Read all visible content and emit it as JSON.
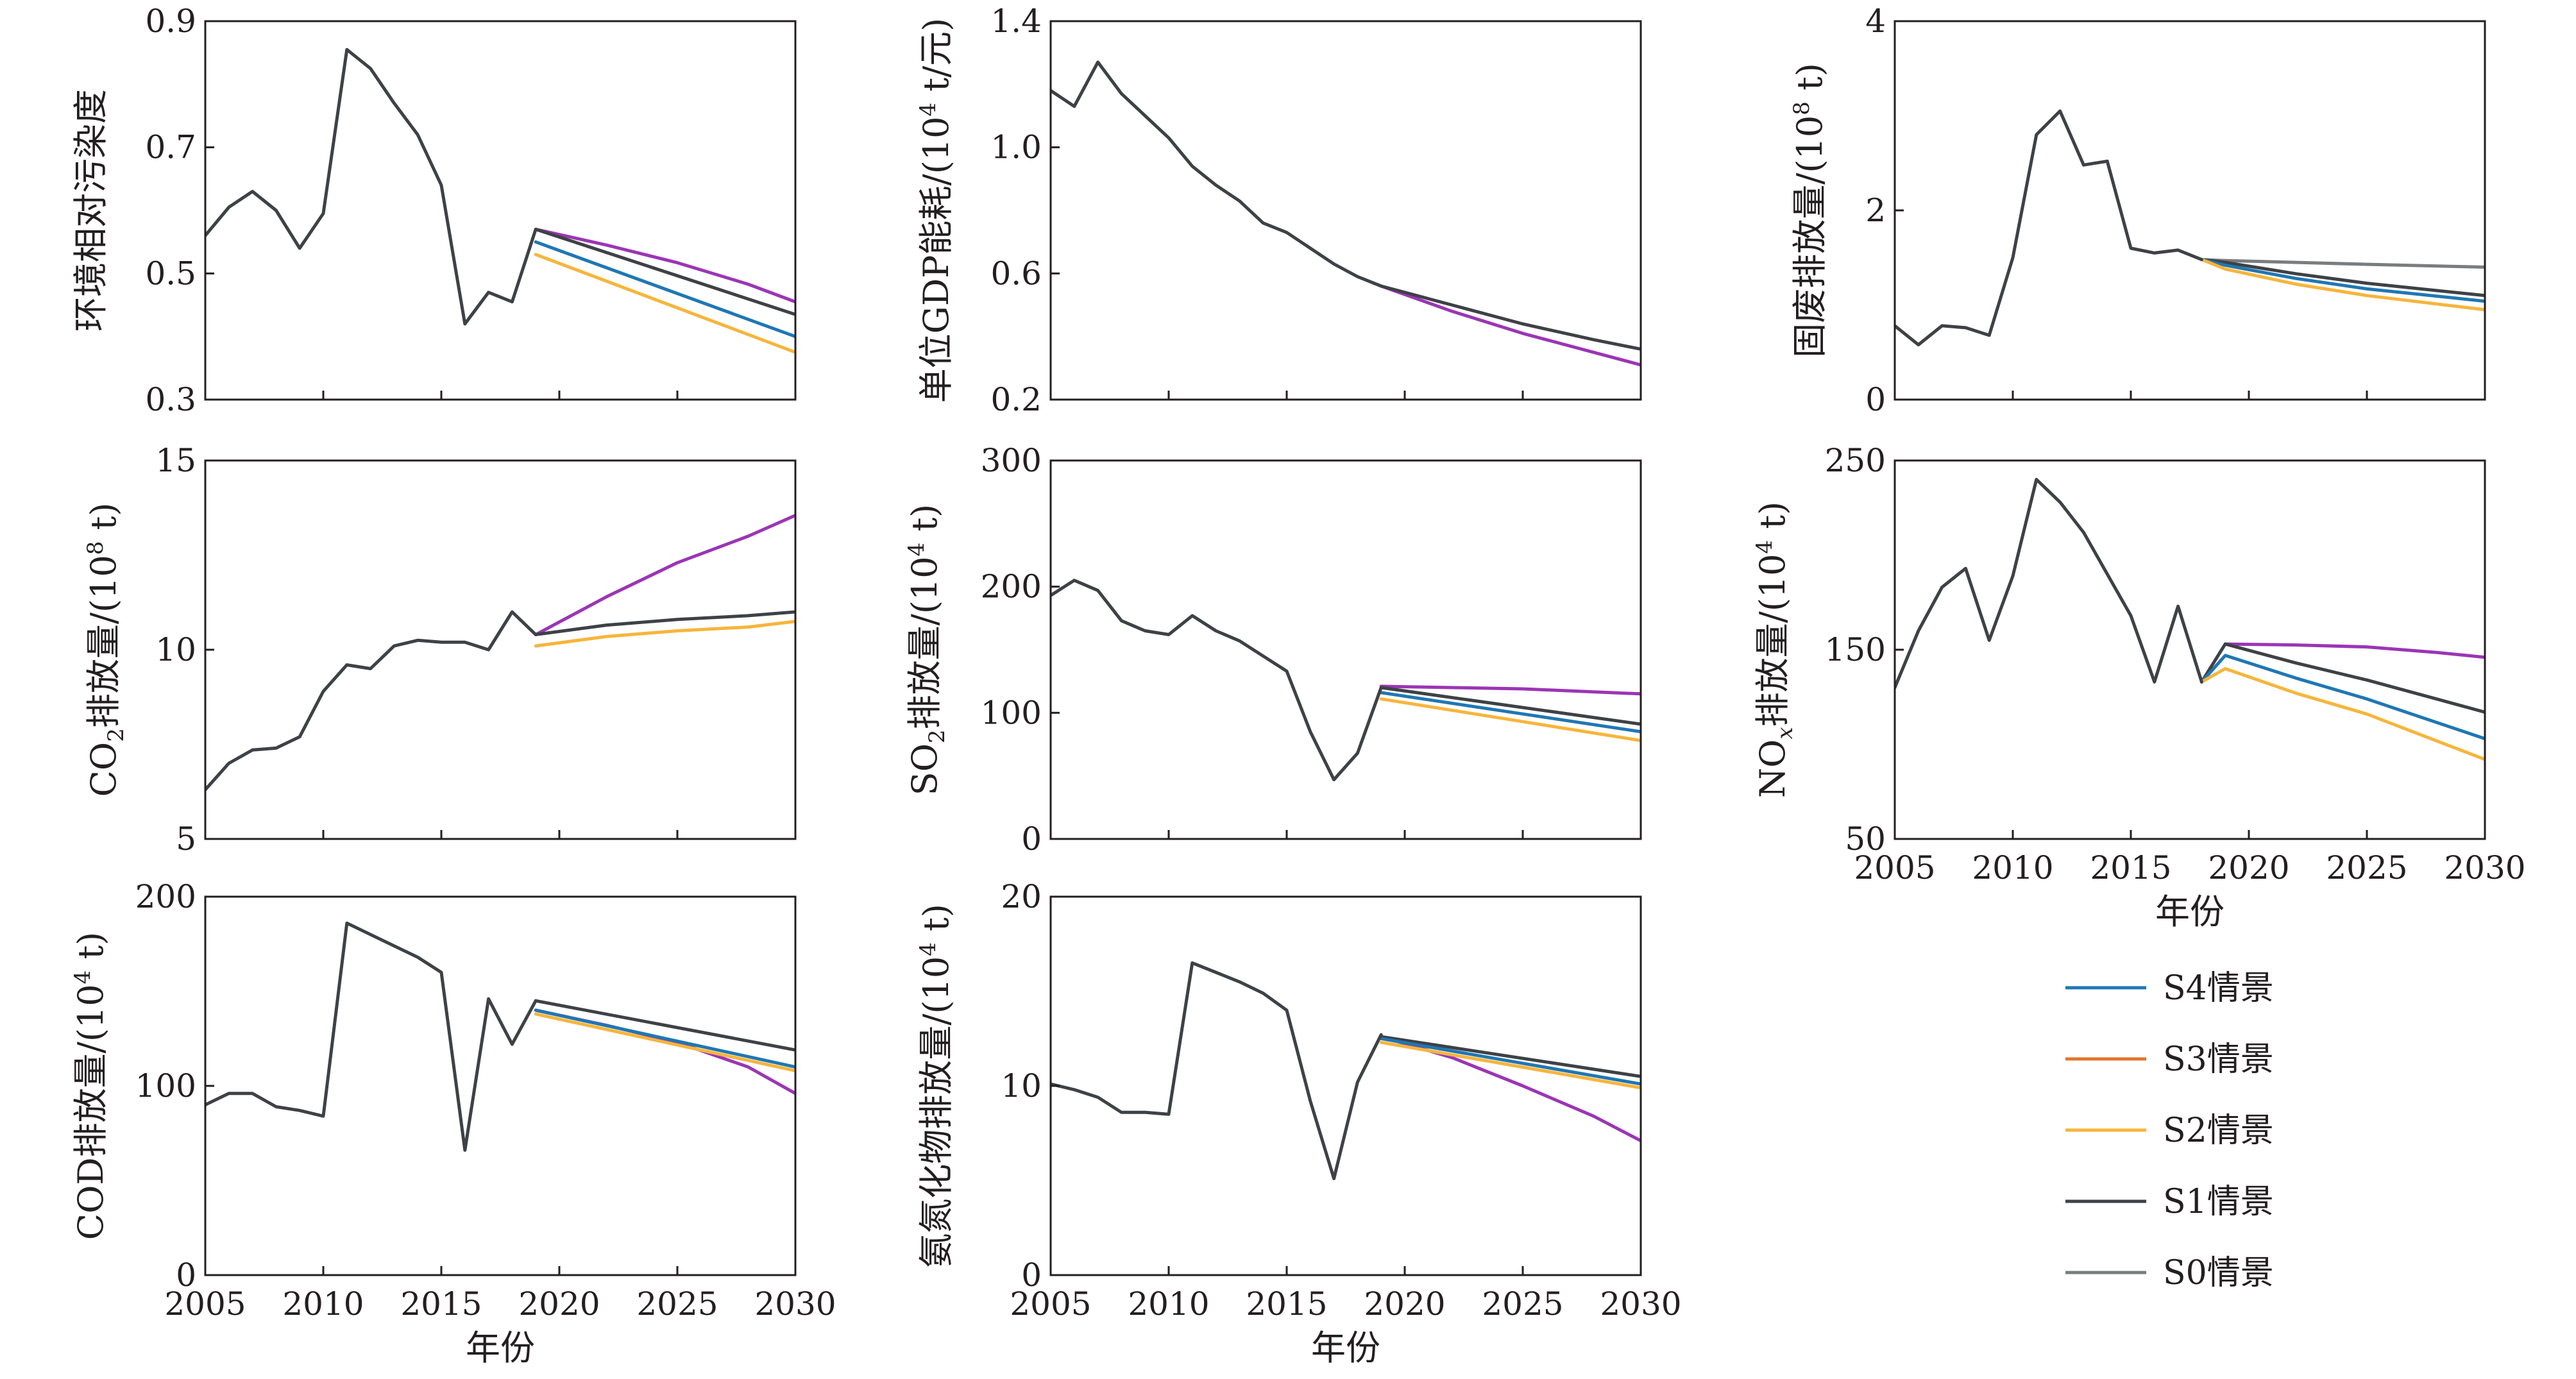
{
  "colors": {
    "S4": "#1f77b4",
    "S3": "#e3752b",
    "S2": "#f7b53b",
    "S1": "#3e4145",
    "S0": "#7a7d7f",
    "extra": "#9b35b5",
    "axis": "#231f20"
  },
  "legend": {
    "items": [
      {
        "key": "S4",
        "label": "S4情景"
      },
      {
        "key": "S3",
        "label": "S3情景"
      },
      {
        "key": "S2",
        "label": "S2情景"
      },
      {
        "key": "S1",
        "label": "S1情景"
      },
      {
        "key": "S0",
        "label": "S0情景"
      }
    ]
  },
  "chart_data": [
    {
      "type": "line",
      "id": "relative-pollution",
      "ylabel": {
        "before": "环境相对污染度",
        "sup": "",
        "after": ""
      },
      "xlabel": "",
      "xlim": [
        2005,
        2030
      ],
      "ylim": [
        0.3,
        0.9
      ],
      "yticks": [
        "0.3",
        "0.5",
        "0.7",
        "0.9"
      ],
      "xticks": [
        "2005",
        "2010",
        "2015",
        "2020",
        "2025",
        "2030"
      ],
      "show_xticklabels": false,
      "history": {
        "x": [
          2005,
          2006,
          2007,
          2008,
          2009,
          2010,
          2011,
          2012,
          2013,
          2014,
          2015,
          2016,
          2017,
          2018,
          2019
        ],
        "y": [
          0.56,
          0.605,
          0.63,
          0.6,
          0.54,
          0.595,
          0.855,
          0.825,
          0.77,
          0.72,
          0.64,
          0.42,
          0.47,
          0.455,
          0.57
        ]
      },
      "series": [
        {
          "key": "extra",
          "x": [
            2019,
            2022,
            2025,
            2028,
            2030
          ],
          "y": [
            0.57,
            0.545,
            0.517,
            0.483,
            0.455
          ]
        },
        {
          "key": "S1",
          "x": [
            2019,
            2030
          ],
          "y": [
            0.57,
            0.435
          ]
        },
        {
          "key": "S4",
          "x": [
            2019,
            2030
          ],
          "y": [
            0.55,
            0.4
          ]
        },
        {
          "key": "S2",
          "x": [
            2019,
            2030
          ],
          "y": [
            0.53,
            0.375
          ]
        }
      ]
    },
    {
      "type": "line",
      "id": "energy-per-gdp",
      "ylabel": {
        "before": "单位GDP能耗/(10",
        "sup": "4",
        "after": " t/元)"
      },
      "xlabel": "",
      "xlim": [
        2005,
        2030
      ],
      "ylim": [
        0.2,
        1.4
      ],
      "yticks": [
        "0.2",
        "0.6",
        "1.0",
        "1.4"
      ],
      "xticks": [
        "2005",
        "2010",
        "2015",
        "2020",
        "2025",
        "2030"
      ],
      "show_xticklabels": false,
      "history": {
        "x": [
          2005,
          2006,
          2007,
          2008,
          2009,
          2010,
          2011,
          2012,
          2013,
          2014,
          2015,
          2016,
          2017,
          2018,
          2019
        ],
        "y": [
          1.18,
          1.13,
          1.27,
          1.17,
          1.1,
          1.03,
          0.94,
          0.88,
          0.83,
          0.76,
          0.73,
          0.68,
          0.63,
          0.59,
          0.56
        ]
      },
      "series": [
        {
          "key": "extra",
          "x": [
            2019,
            2022,
            2025,
            2028,
            2030
          ],
          "y": [
            0.56,
            0.48,
            0.41,
            0.35,
            0.31
          ]
        },
        {
          "key": "S1",
          "x": [
            2019,
            2020,
            2022,
            2025,
            2028,
            2030
          ],
          "y": [
            0.56,
            0.54,
            0.5,
            0.44,
            0.39,
            0.36
          ]
        }
      ]
    },
    {
      "type": "line",
      "id": "solid-waste",
      "ylabel": {
        "before": "固废排放量/(10",
        "sup": "8",
        "after": " t)"
      },
      "xlabel": "",
      "xlim": [
        2005,
        2030
      ],
      "ylim": [
        0,
        4
      ],
      "yticks": [
        "0",
        "2",
        "4"
      ],
      "xticks": [
        "2005",
        "2010",
        "2015",
        "2020",
        "2025",
        "2030"
      ],
      "show_xticklabels": false,
      "history": {
        "x": [
          2005,
          2006,
          2007,
          2008,
          2009,
          2010,
          2011,
          2012,
          2013,
          2014,
          2015,
          2016,
          2017,
          2018
        ],
        "y": [
          0.78,
          0.58,
          0.78,
          0.76,
          0.68,
          1.5,
          2.8,
          3.05,
          2.48,
          2.52,
          1.6,
          1.55,
          1.58,
          1.48
        ]
      },
      "series": [
        {
          "key": "S0",
          "x": [
            2018,
            2019,
            2022,
            2025,
            2030
          ],
          "y": [
            1.48,
            1.47,
            1.45,
            1.43,
            1.4
          ]
        },
        {
          "key": "S1",
          "x": [
            2018,
            2019,
            2022,
            2025,
            2030
          ],
          "y": [
            1.48,
            1.45,
            1.33,
            1.23,
            1.1
          ]
        },
        {
          "key": "S4",
          "x": [
            2018,
            2019,
            2022,
            2025,
            2030
          ],
          "y": [
            1.48,
            1.42,
            1.28,
            1.17,
            1.04
          ]
        },
        {
          "key": "S2",
          "x": [
            2018,
            2019,
            2022,
            2025,
            2030
          ],
          "y": [
            1.48,
            1.38,
            1.22,
            1.1,
            0.95
          ]
        }
      ]
    },
    {
      "type": "line",
      "id": "co2",
      "ylabel": {
        "before": "CO",
        "sub": "2",
        "after": "排放量/(10",
        "sup": "8",
        "after2": " t)"
      },
      "xlabel": "",
      "xlim": [
        2005,
        2030
      ],
      "ylim": [
        5,
        15
      ],
      "yticks": [
        "5",
        "10",
        "15"
      ],
      "xticks": [
        "2005",
        "2010",
        "2015",
        "2020",
        "2025",
        "2030"
      ],
      "show_xticklabels": false,
      "history": {
        "x": [
          2005,
          2006,
          2007,
          2008,
          2009,
          2010,
          2011,
          2012,
          2013,
          2014,
          2015,
          2016,
          2017,
          2018,
          2019
        ],
        "y": [
          6.3,
          7.0,
          7.35,
          7.4,
          7.7,
          8.9,
          9.6,
          9.5,
          10.1,
          10.25,
          10.2,
          10.2,
          10.0,
          11.0,
          10.4
        ]
      },
      "series": [
        {
          "key": "extra",
          "x": [
            2019,
            2022,
            2025,
            2028,
            2030
          ],
          "y": [
            10.4,
            11.4,
            12.3,
            13.0,
            13.55
          ]
        },
        {
          "key": "S1",
          "x": [
            2019,
            2022,
            2025,
            2028,
            2030
          ],
          "y": [
            10.4,
            10.65,
            10.8,
            10.9,
            11.0
          ]
        },
        {
          "key": "S2",
          "x": [
            2019,
            2022,
            2025,
            2028,
            2030
          ],
          "y": [
            10.1,
            10.35,
            10.5,
            10.6,
            10.75
          ]
        }
      ]
    },
    {
      "type": "line",
      "id": "so2",
      "ylabel": {
        "before": "SO",
        "sub": "2",
        "after": "排放量/(10",
        "sup": "4",
        "after2": " t)"
      },
      "xlabel": "",
      "xlim": [
        2005,
        2030
      ],
      "ylim": [
        0,
        300
      ],
      "yticks": [
        "0",
        "100",
        "200",
        "300"
      ],
      "xticks": [
        "2005",
        "2010",
        "2015",
        "2020",
        "2025",
        "2030"
      ],
      "show_xticklabels": false,
      "history": {
        "x": [
          2005,
          2006,
          2007,
          2008,
          2009,
          2010,
          2011,
          2012,
          2013,
          2014,
          2015,
          2016,
          2017,
          2018,
          2019
        ],
        "y": [
          193,
          205,
          197,
          173,
          165,
          162,
          177,
          165,
          157,
          145,
          133,
          85,
          47,
          68,
          120
        ]
      },
      "series": [
        {
          "key": "extra",
          "x": [
            2019,
            2022,
            2025,
            2030
          ],
          "y": [
            121,
            120,
            119,
            115
          ]
        },
        {
          "key": "S1",
          "x": [
            2019,
            2030
          ],
          "y": [
            120,
            91
          ]
        },
        {
          "key": "S4",
          "x": [
            2019,
            2030
          ],
          "y": [
            116,
            85
          ]
        },
        {
          "key": "S2",
          "x": [
            2019,
            2030
          ],
          "y": [
            111,
            78
          ]
        }
      ]
    },
    {
      "type": "line",
      "id": "nox",
      "ylabel": {
        "before": "NO",
        "subitalic": "x",
        "after": "排放量/(10",
        "sup": "4",
        "after2": " t)"
      },
      "xlabel": "年份",
      "xlim": [
        2005,
        2030
      ],
      "ylim": [
        50,
        250
      ],
      "yticks": [
        "50",
        "150",
        "250"
      ],
      "xticks": [
        "2005",
        "2010",
        "2015",
        "2020",
        "2025",
        "2030"
      ],
      "show_xticklabels": true,
      "history": {
        "x": [
          2005,
          2006,
          2007,
          2008,
          2009,
          2010,
          2011,
          2012,
          2013,
          2014,
          2015,
          2016,
          2017,
          2018
        ],
        "y": [
          130,
          160,
          183,
          193,
          155,
          189,
          240,
          228,
          212,
          190,
          168,
          133,
          173,
          133
        ]
      },
      "series": [
        {
          "key": "extra",
          "x": [
            2019,
            2022,
            2025,
            2028,
            2030
          ],
          "y": [
            153,
            152.5,
            151.5,
            148.5,
            146
          ]
        },
        {
          "key": "S1",
          "x": [
            2018,
            2019,
            2022,
            2025,
            2030
          ],
          "y": [
            133,
            153,
            143,
            134,
            117
          ]
        },
        {
          "key": "S4",
          "x": [
            2018,
            2019,
            2022,
            2025,
            2030
          ],
          "y": [
            133,
            147,
            135,
            124,
            103
          ]
        },
        {
          "key": "S2",
          "x": [
            2018,
            2019,
            2022,
            2025,
            2030
          ],
          "y": [
            133,
            140,
            127,
            116,
            92
          ]
        }
      ]
    },
    {
      "type": "line",
      "id": "cod",
      "ylabel": {
        "before": "COD排放量/(10",
        "sup": "4",
        "after": " t)"
      },
      "xlabel": "年份",
      "xlim": [
        2005,
        2030
      ],
      "ylim": [
        0,
        200
      ],
      "yticks": [
        "0",
        "100",
        "200"
      ],
      "xticks": [
        "2005",
        "2010",
        "2015",
        "2020",
        "2025",
        "2030"
      ],
      "show_xticklabels": true,
      "history": {
        "x": [
          2005,
          2006,
          2007,
          2008,
          2009,
          2010,
          2011,
          2012,
          2013,
          2014,
          2015,
          2016,
          2017,
          2018,
          2019
        ],
        "y": [
          90,
          96,
          96,
          89,
          87,
          84,
          186,
          180,
          174,
          168,
          160,
          66,
          146,
          122,
          145
        ]
      },
      "series": [
        {
          "key": "extra",
          "x": [
            2019,
            2022,
            2025,
            2028,
            2030
          ],
          "y": [
            140,
            132,
            123,
            110,
            96
          ]
        },
        {
          "key": "S1",
          "x": [
            2019,
            2030
          ],
          "y": [
            145,
            119
          ]
        },
        {
          "key": "S4",
          "x": [
            2019,
            2030
          ],
          "y": [
            140,
            110
          ]
        },
        {
          "key": "S2",
          "x": [
            2019,
            2030
          ],
          "y": [
            138,
            108
          ]
        }
      ]
    },
    {
      "type": "line",
      "id": "ammonia",
      "ylabel": {
        "before": "氨氮化物排放量/(10",
        "sup": "4",
        "after": " t)"
      },
      "xlabel": "年份",
      "xlim": [
        2005,
        2030
      ],
      "ylim": [
        0,
        20
      ],
      "yticks": [
        "0",
        "10",
        "20"
      ],
      "xticks": [
        "2005",
        "2010",
        "2015",
        "2020",
        "2025",
        "2030"
      ],
      "show_xticklabels": true,
      "history": {
        "x": [
          2005,
          2006,
          2007,
          2008,
          2009,
          2010,
          2011,
          2012,
          2013,
          2014,
          2015,
          2016,
          2017,
          2018,
          2019
        ],
        "y": [
          10.1,
          9.8,
          9.4,
          8.6,
          8.6,
          8.5,
          16.5,
          16.0,
          15.5,
          14.9,
          14.0,
          9.2,
          5.1,
          10.2,
          12.7
        ]
      },
      "series": [
        {
          "key": "extra",
          "x": [
            2019,
            2022,
            2025,
            2028,
            2030
          ],
          "y": [
            12.6,
            11.5,
            10.0,
            8.4,
            7.1
          ]
        },
        {
          "key": "S1",
          "x": [
            2019,
            2030
          ],
          "y": [
            12.6,
            10.5
          ]
        },
        {
          "key": "S4",
          "x": [
            2019,
            2030
          ],
          "y": [
            12.5,
            10.1
          ]
        },
        {
          "key": "S2",
          "x": [
            2019,
            2030
          ],
          "y": [
            12.3,
            9.9
          ]
        }
      ]
    }
  ]
}
